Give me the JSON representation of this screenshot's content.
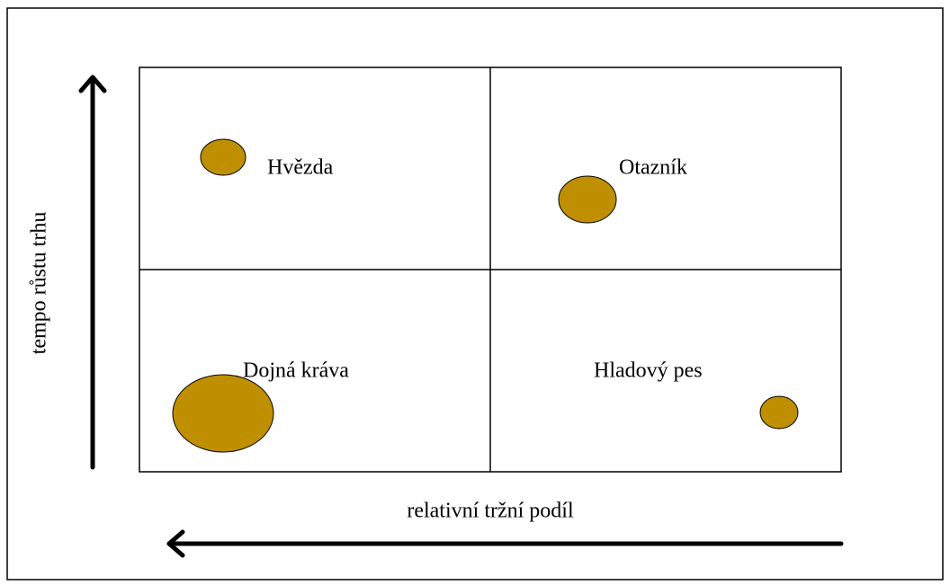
{
  "y_axis_label": "tempo růstu trhu",
  "x_axis_label": "relativní tržní podíl",
  "quadrants": [
    {
      "label": "Hvězda"
    },
    {
      "label": "Otazník"
    },
    {
      "label": "Dojná kráva"
    },
    {
      "label": "Hladový pes"
    }
  ]
}
